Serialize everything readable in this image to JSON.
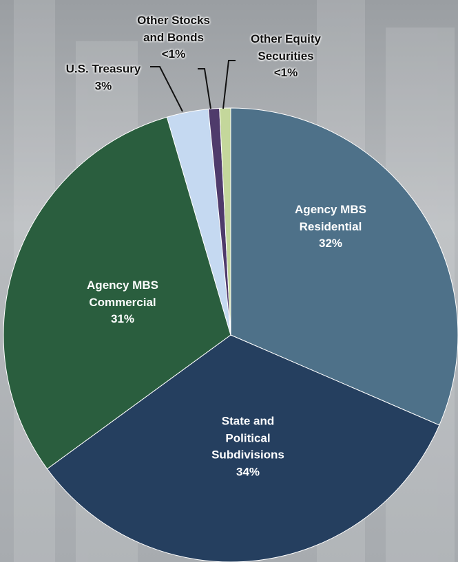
{
  "chart_data": {
    "type": "pie",
    "categories": [
      "Agency MBS Residential",
      "State and Political Subdivisions",
      "Agency MBS Commercial",
      "U.S. Treasury",
      "Other Stocks and Bonds",
      "Other Equity Securities"
    ],
    "values": [
      32,
      34,
      31,
      3,
      0.8,
      0.8
    ],
    "value_labels": [
      "32%",
      "34%",
      "31%",
      "3%",
      "<1%",
      "<1%"
    ],
    "colors": [
      "#4e7189",
      "#253f5f",
      "#2a5e3e",
      "#c5d9f1",
      "#4f3b6b",
      "#c4d79b"
    ]
  }
}
